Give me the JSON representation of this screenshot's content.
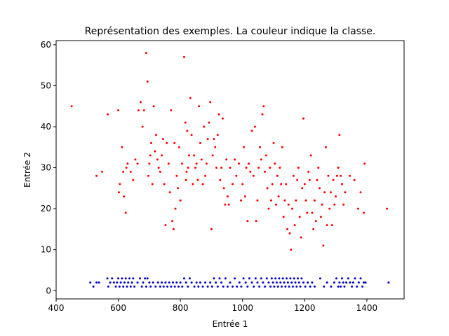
{
  "chart_data": {
    "type": "scatter",
    "title": "Représentation des exemples. La couleur indique la classe.",
    "xlabel": "Entrée 1",
    "ylabel": "Entrée 2",
    "xlim": [
      400,
      1520
    ],
    "ylim": [
      -2,
      61
    ],
    "xticks": [
      400,
      600,
      800,
      1000,
      1200,
      1400
    ],
    "yticks": [
      0,
      10,
      20,
      30,
      40,
      50,
      60
    ],
    "grid": false,
    "series": [
      {
        "color": "#ff0000",
        "points": [
          [
            450,
            45
          ],
          [
            530,
            28
          ],
          [
            548,
            29
          ],
          [
            566,
            43
          ],
          [
            600,
            44
          ],
          [
            602,
            24
          ],
          [
            605,
            26
          ],
          [
            612,
            35
          ],
          [
            616,
            29
          ],
          [
            618,
            23
          ],
          [
            624,
            19
          ],
          [
            626,
            30
          ],
          [
            630,
            31
          ],
          [
            640,
            29
          ],
          [
            648,
            27
          ],
          [
            655,
            32
          ],
          [
            662,
            31
          ],
          [
            665,
            44
          ],
          [
            672,
            46
          ],
          [
            678,
            40
          ],
          [
            683,
            44
          ],
          [
            690,
            58
          ],
          [
            694,
            51
          ],
          [
            697,
            28
          ],
          [
            700,
            31
          ],
          [
            703,
            33
          ],
          [
            706,
            36
          ],
          [
            710,
            26
          ],
          [
            714,
            45
          ],
          [
            718,
            34
          ],
          [
            722,
            38
          ],
          [
            726,
            32
          ],
          [
            730,
            30
          ],
          [
            735,
            29
          ],
          [
            740,
            33
          ],
          [
            744,
            37
          ],
          [
            748,
            26
          ],
          [
            752,
            16
          ],
          [
            756,
            36
          ],
          [
            762,
            31
          ],
          [
            766,
            24
          ],
          [
            770,
            44
          ],
          [
            774,
            17
          ],
          [
            778,
            15
          ],
          [
            781,
            36
          ],
          [
            784,
            20
          ],
          [
            788,
            28
          ],
          [
            792,
            25
          ],
          [
            796,
            35
          ],
          [
            800,
            22
          ],
          [
            805,
            31
          ],
          [
            812,
            57
          ],
          [
            816,
            41
          ],
          [
            818,
            27
          ],
          [
            820,
            29
          ],
          [
            822,
            39
          ],
          [
            825,
            30
          ],
          [
            828,
            33
          ],
          [
            832,
            47
          ],
          [
            836,
            38
          ],
          [
            840,
            26
          ],
          [
            844,
            33
          ],
          [
            848,
            30
          ],
          [
            852,
            31
          ],
          [
            856,
            27
          ],
          [
            860,
            45
          ],
          [
            864,
            36
          ],
          [
            868,
            32
          ],
          [
            872,
            26
          ],
          [
            876,
            40
          ],
          [
            880,
            28
          ],
          [
            884,
            31
          ],
          [
            888,
            37
          ],
          [
            892,
            41
          ],
          [
            896,
            46
          ],
          [
            900,
            15
          ],
          [
            904,
            33
          ],
          [
            908,
            37
          ],
          [
            912,
            35
          ],
          [
            916,
            30
          ],
          [
            920,
            38
          ],
          [
            924,
            43
          ],
          [
            928,
            27
          ],
          [
            932,
            30
          ],
          [
            936,
            42
          ],
          [
            940,
            25
          ],
          [
            944,
            21
          ],
          [
            948,
            32
          ],
          [
            952,
            23
          ],
          [
            956,
            21
          ],
          [
            960,
            30
          ],
          [
            968,
            26
          ],
          [
            975,
            32
          ],
          [
            980,
            28
          ],
          [
            988,
            31
          ],
          [
            995,
            22
          ],
          [
            1000,
            26
          ],
          [
            1004,
            35
          ],
          [
            1008,
            23
          ],
          [
            1012,
            30
          ],
          [
            1016,
            17
          ],
          [
            1020,
            31
          ],
          [
            1025,
            29
          ],
          [
            1030,
            39
          ],
          [
            1035,
            28
          ],
          [
            1040,
            40
          ],
          [
            1044,
            17
          ],
          [
            1048,
            22
          ],
          [
            1052,
            30
          ],
          [
            1056,
            35
          ],
          [
            1060,
            32
          ],
          [
            1064,
            43
          ],
          [
            1068,
            45
          ],
          [
            1072,
            29
          ],
          [
            1076,
            33
          ],
          [
            1080,
            25
          ],
          [
            1084,
            20
          ],
          [
            1088,
            30
          ],
          [
            1092,
            22
          ],
          [
            1096,
            26
          ],
          [
            1100,
            36
          ],
          [
            1104,
            31
          ],
          [
            1108,
            21
          ],
          [
            1112,
            28
          ],
          [
            1116,
            23
          ],
          [
            1120,
            30
          ],
          [
            1124,
            26
          ],
          [
            1128,
            35
          ],
          [
            1132,
            18
          ],
          [
            1136,
            22
          ],
          [
            1140,
            26
          ],
          [
            1144,
            15
          ],
          [
            1148,
            21
          ],
          [
            1152,
            14
          ],
          [
            1156,
            10
          ],
          [
            1160,
            20
          ],
          [
            1164,
            28
          ],
          [
            1168,
            16
          ],
          [
            1172,
            22
          ],
          [
            1176,
            27
          ],
          [
            1180,
            30
          ],
          [
            1184,
            18
          ],
          [
            1188,
            13
          ],
          [
            1192,
            25
          ],
          [
            1196,
            42
          ],
          [
            1200,
            26
          ],
          [
            1204,
            22
          ],
          [
            1208,
            19
          ],
          [
            1212,
            29
          ],
          [
            1216,
            27
          ],
          [
            1220,
            33
          ],
          [
            1224,
            19
          ],
          [
            1228,
            15
          ],
          [
            1232,
            22
          ],
          [
            1236,
            17
          ],
          [
            1240,
            27
          ],
          [
            1244,
            30
          ],
          [
            1248,
            25
          ],
          [
            1252,
            18
          ],
          [
            1256,
            21
          ],
          [
            1260,
            11
          ],
          [
            1264,
            24
          ],
          [
            1268,
            35
          ],
          [
            1272,
            16
          ],
          [
            1276,
            28
          ],
          [
            1280,
            20
          ],
          [
            1284,
            24
          ],
          [
            1288,
            16
          ],
          [
            1292,
            27
          ],
          [
            1296,
            21
          ],
          [
            1300,
            23
          ],
          [
            1304,
            28
          ],
          [
            1308,
            30
          ],
          [
            1312,
            38
          ],
          [
            1316,
            28
          ],
          [
            1320,
            26
          ],
          [
            1325,
            21
          ],
          [
            1330,
            24
          ],
          [
            1345,
            28
          ],
          [
            1360,
            27
          ],
          [
            1372,
            20
          ],
          [
            1380,
            24
          ],
          [
            1390,
            19
          ],
          [
            1393,
            31
          ],
          [
            1465,
            20
          ]
        ]
      },
      {
        "color": "#0000cc",
        "points": [
          [
            510,
            2
          ],
          [
            520,
            1
          ],
          [
            530,
            2
          ],
          [
            538,
            2
          ],
          [
            565,
            3
          ],
          [
            568,
            1
          ],
          [
            574,
            2
          ],
          [
            580,
            3
          ],
          [
            586,
            2
          ],
          [
            592,
            1
          ],
          [
            596,
            2
          ],
          [
            600,
            3
          ],
          [
            604,
            1
          ],
          [
            608,
            2
          ],
          [
            612,
            3
          ],
          [
            616,
            1
          ],
          [
            620,
            2
          ],
          [
            624,
            3
          ],
          [
            628,
            1
          ],
          [
            632,
            2
          ],
          [
            636,
            3
          ],
          [
            640,
            1
          ],
          [
            644,
            2
          ],
          [
            648,
            3
          ],
          [
            652,
            1
          ],
          [
            662,
            2
          ],
          [
            670,
            3
          ],
          [
            676,
            1
          ],
          [
            680,
            2
          ],
          [
            686,
            3
          ],
          [
            690,
            1
          ],
          [
            694,
            3
          ],
          [
            700,
            2
          ],
          [
            704,
            1
          ],
          [
            712,
            2
          ],
          [
            720,
            1
          ],
          [
            728,
            2
          ],
          [
            735,
            1
          ],
          [
            740,
            2
          ],
          [
            746,
            1
          ],
          [
            752,
            2
          ],
          [
            758,
            1
          ],
          [
            764,
            2
          ],
          [
            770,
            1
          ],
          [
            776,
            2
          ],
          [
            782,
            1
          ],
          [
            788,
            2
          ],
          [
            794,
            1
          ],
          [
            800,
            2
          ],
          [
            806,
            1
          ],
          [
            812,
            3
          ],
          [
            818,
            2
          ],
          [
            824,
            1
          ],
          [
            830,
            3
          ],
          [
            836,
            2
          ],
          [
            845,
            1
          ],
          [
            852,
            2
          ],
          [
            858,
            1
          ],
          [
            864,
            2
          ],
          [
            872,
            1
          ],
          [
            880,
            2
          ],
          [
            888,
            1
          ],
          [
            896,
            2
          ],
          [
            902,
            1
          ],
          [
            908,
            3
          ],
          [
            914,
            2
          ],
          [
            920,
            1
          ],
          [
            926,
            3
          ],
          [
            932,
            2
          ],
          [
            938,
            1
          ],
          [
            945,
            3
          ],
          [
            952,
            1
          ],
          [
            960,
            2
          ],
          [
            968,
            1
          ],
          [
            975,
            3
          ],
          [
            982,
            1
          ],
          [
            990,
            2
          ],
          [
            996,
            1
          ],
          [
            1003,
            3
          ],
          [
            1010,
            2
          ],
          [
            1016,
            1
          ],
          [
            1022,
            3
          ],
          [
            1030,
            2
          ],
          [
            1036,
            1
          ],
          [
            1042,
            3
          ],
          [
            1048,
            2
          ],
          [
            1054,
            1
          ],
          [
            1060,
            3
          ],
          [
            1066,
            2
          ],
          [
            1072,
            1
          ],
          [
            1078,
            3
          ],
          [
            1084,
            2
          ],
          [
            1090,
            1
          ],
          [
            1094,
            3
          ],
          [
            1098,
            2
          ],
          [
            1102,
            1
          ],
          [
            1106,
            3
          ],
          [
            1110,
            2
          ],
          [
            1114,
            1
          ],
          [
            1118,
            3
          ],
          [
            1122,
            2
          ],
          [
            1126,
            1
          ],
          [
            1130,
            3
          ],
          [
            1134,
            2
          ],
          [
            1138,
            1
          ],
          [
            1142,
            3
          ],
          [
            1146,
            2
          ],
          [
            1150,
            1
          ],
          [
            1154,
            3
          ],
          [
            1158,
            2
          ],
          [
            1162,
            1
          ],
          [
            1166,
            3
          ],
          [
            1170,
            2
          ],
          [
            1174,
            1
          ],
          [
            1178,
            3
          ],
          [
            1182,
            2
          ],
          [
            1186,
            1
          ],
          [
            1190,
            3
          ],
          [
            1196,
            2
          ],
          [
            1202,
            1
          ],
          [
            1210,
            2
          ],
          [
            1218,
            1
          ],
          [
            1224,
            2
          ],
          [
            1232,
            1
          ],
          [
            1250,
            3
          ],
          [
            1262,
            1
          ],
          [
            1272,
            2
          ],
          [
            1285,
            1
          ],
          [
            1295,
            2
          ],
          [
            1302,
            3
          ],
          [
            1308,
            1
          ],
          [
            1312,
            2
          ],
          [
            1316,
            1
          ],
          [
            1320,
            3
          ],
          [
            1324,
            2
          ],
          [
            1328,
            1
          ],
          [
            1334,
            2
          ],
          [
            1340,
            3
          ],
          [
            1346,
            2
          ],
          [
            1352,
            1
          ],
          [
            1356,
            2
          ],
          [
            1362,
            3
          ],
          [
            1368,
            1
          ],
          [
            1374,
            2
          ],
          [
            1380,
            3
          ],
          [
            1386,
            1
          ],
          [
            1390,
            2
          ],
          [
            1396,
            2
          ],
          [
            1470,
            2
          ]
        ]
      }
    ]
  }
}
